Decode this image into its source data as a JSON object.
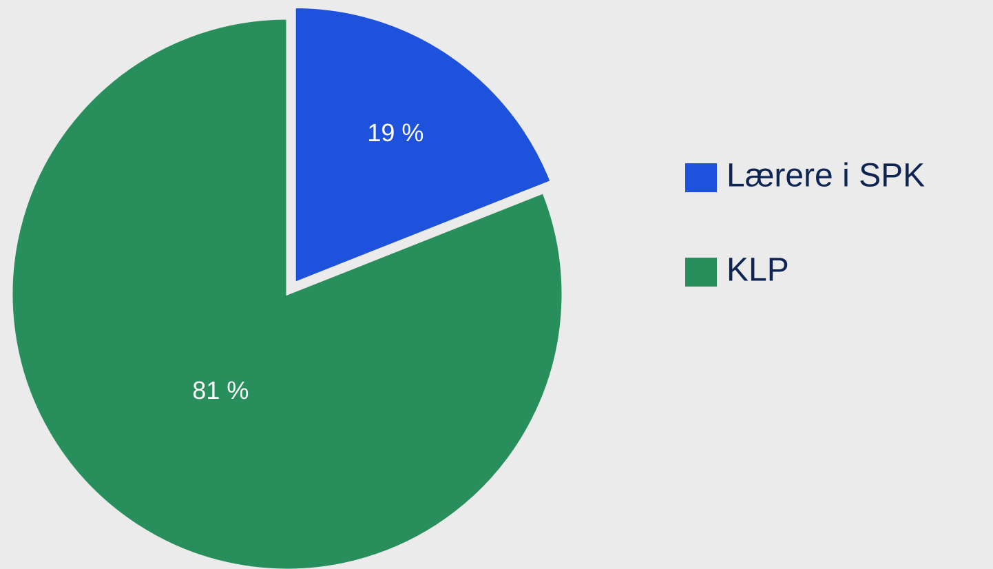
{
  "chart_data": {
    "type": "pie",
    "categories": [
      "Lærere i SPK",
      "KLP"
    ],
    "values": [
      19,
      81
    ],
    "value_labels": [
      "19 %",
      "81 %"
    ],
    "colors": [
      "#1e52dc",
      "#288e5c"
    ],
    "legend": "right"
  }
}
